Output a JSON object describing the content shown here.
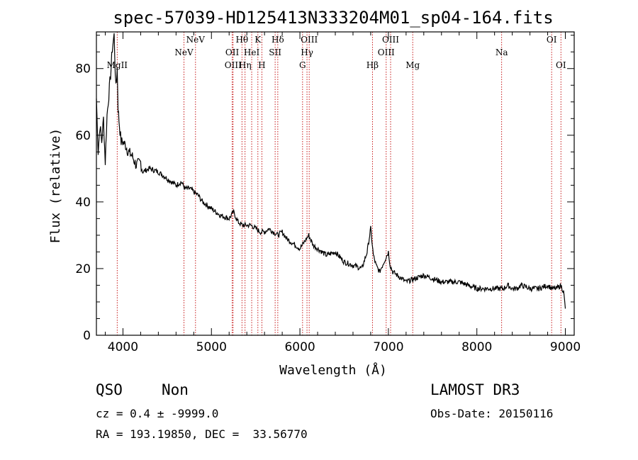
{
  "chart_data": {
    "type": "line",
    "title": "spec-57039-HD125413N333204M01_sp04-164.fits",
    "xlabel": "Wavelength (Å)",
    "ylabel": "Flux (relative)",
    "xlim": [
      3700,
      9100
    ],
    "ylim": [
      0,
      91
    ],
    "xticks": [
      4000,
      5000,
      6000,
      7000,
      8000,
      9000
    ],
    "yticks": [
      0,
      20,
      40,
      60,
      80
    ],
    "series": [
      {
        "name": "spectrum",
        "x": [
          3700,
          3720,
          3740,
          3760,
          3780,
          3800,
          3820,
          3840,
          3860,
          3880,
          3900,
          3920,
          3935,
          3945,
          3960,
          3980,
          4000,
          4030,
          4060,
          4100,
          4150,
          4200,
          4220,
          4300,
          4400,
          4500,
          4550,
          4600,
          4660,
          4700,
          4760,
          4800,
          4850,
          4900,
          5000,
          5100,
          5200,
          5250,
          5300,
          5350,
          5400,
          5450,
          5500,
          5550,
          5600,
          5650,
          5700,
          5750,
          5800,
          5850,
          5900,
          5950,
          6000,
          6050,
          6100,
          6150,
          6200,
          6300,
          6400,
          6500,
          6600,
          6700,
          6760,
          6800,
          6830,
          6860,
          6900,
          6950,
          7000,
          7020,
          7050,
          7100,
          7150,
          7200,
          7300,
          7400,
          7500,
          7600,
          7700,
          7800,
          7900,
          8000,
          8100,
          8200,
          8260,
          8300,
          8350,
          8400,
          8450,
          8500,
          8600,
          8700,
          8800,
          8850,
          8900,
          8950,
          8980,
          9000
        ],
        "y": [
          71,
          55,
          63,
          58,
          65,
          52,
          66,
          72,
          78,
          86,
          90,
          74,
          80,
          68,
          63,
          58,
          58,
          57,
          55,
          54,
          51,
          52,
          49,
          50,
          49,
          47,
          46,
          45,
          46,
          44,
          44,
          43,
          42,
          40,
          38,
          36,
          35,
          37,
          34,
          33,
          33,
          33,
          32,
          31,
          31,
          32,
          31,
          30,
          31,
          29,
          28,
          27,
          26,
          28,
          30,
          27,
          26,
          24,
          25,
          22,
          21,
          20,
          25,
          32,
          24,
          21,
          19,
          22,
          25,
          21,
          19,
          18,
          17,
          16,
          17,
          18,
          17,
          16,
          16,
          16,
          15,
          14,
          14,
          14,
          14,
          14,
          15,
          14,
          14,
          15,
          14,
          14,
          15,
          14,
          14,
          15,
          13,
          8
        ]
      }
    ],
    "emission_lines": [
      {
        "label": "MgII",
        "wavelength": 3935,
        "row": 3
      },
      {
        "label": "NeV",
        "wavelength": 4690,
        "row": 2
      },
      {
        "label": "NeV",
        "wavelength": 4820,
        "row": 1
      },
      {
        "label": "OII",
        "wavelength": 5235,
        "row": 2
      },
      {
        "label": "OIII",
        "wavelength": 5245,
        "row": 3
      },
      {
        "label": "Hθ",
        "wavelength": 5345,
        "row": 1
      },
      {
        "label": "Hη",
        "wavelength": 5380,
        "row": 3
      },
      {
        "label": "HeI",
        "wavelength": 5455,
        "row": 2
      },
      {
        "label": "K",
        "wavelength": 5525,
        "row": 1
      },
      {
        "label": "H",
        "wavelength": 5570,
        "row": 3
      },
      {
        "label": "Hδ",
        "wavelength": 5750,
        "row": 1
      },
      {
        "label": "SII",
        "wavelength": 5720,
        "row": 2
      },
      {
        "label": "OIII",
        "wavelength": 6105,
        "row": 1
      },
      {
        "label": "Hγ",
        "wavelength": 6080,
        "row": 2
      },
      {
        "label": "G",
        "wavelength": 6030,
        "row": 3
      },
      {
        "label": "Hβ",
        "wavelength": 6820,
        "row": 3
      },
      {
        "label": "OIII",
        "wavelength": 7025,
        "row": 1
      },
      {
        "label": "OIII",
        "wavelength": 6975,
        "row": 2
      },
      {
        "label": "Mg",
        "wavelength": 7275,
        "row": 3
      },
      {
        "label": "Na",
        "wavelength": 8280,
        "row": 2
      },
      {
        "label": "OI",
        "wavelength": 8845,
        "row": 1
      },
      {
        "label": "OI",
        "wavelength": 8950,
        "row": 3
      }
    ]
  },
  "info": {
    "class": "QSO",
    "subclass": "Non",
    "survey": "LAMOST DR3",
    "cz": "cz = 0.4 ± -9999.0",
    "obs_date": "Obs-Date: 20150116",
    "coords": "RA = 193.19850, DEC =  33.56770"
  },
  "colors": {
    "spectrum": "#000000",
    "line_marker": "#c00000",
    "axes": "#000000"
  }
}
